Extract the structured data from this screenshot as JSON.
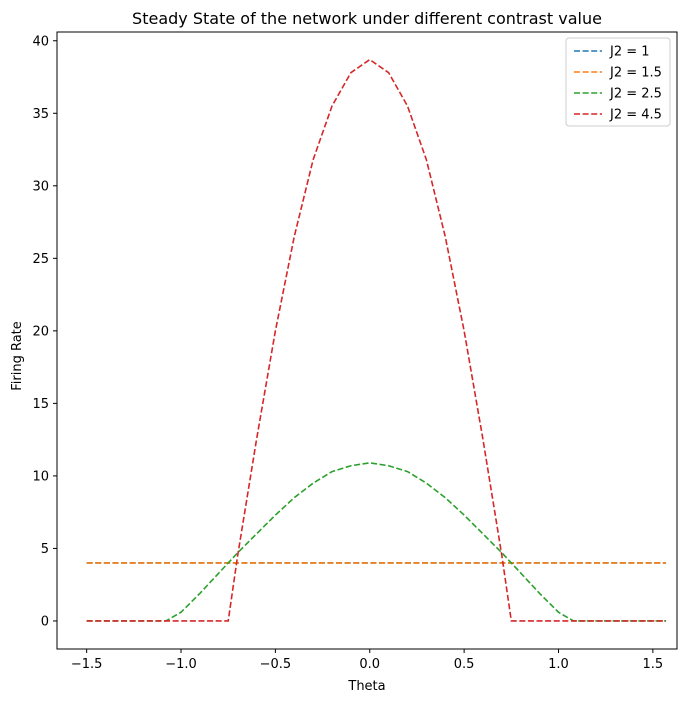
{
  "chart_data": {
    "type": "line",
    "title": "Steady State of the network under different contrast value",
    "xlabel": "Theta",
    "ylabel": "Firing Rate",
    "xlim": [
      -1.6571,
      1.6279
    ],
    "ylim": [
      -1.9335,
      40.6035
    ],
    "xticks": [
      -1.5,
      -1.0,
      -0.5,
      0.0,
      0.5,
      1.0,
      1.5
    ],
    "xtick_labels": [
      "−1.5",
      "−1.0",
      "−0.5",
      "0.0",
      "0.5",
      "1.0",
      "1.5"
    ],
    "yticks": [
      0,
      5,
      10,
      15,
      20,
      25,
      30,
      35,
      40
    ],
    "ytick_labels": [
      "0",
      "5",
      "10",
      "15",
      "20",
      "25",
      "30",
      "35",
      "40"
    ],
    "legend_position": "top-right",
    "line_style": "dashed",
    "series": [
      {
        "name": "J2 = 1",
        "color": "#1f77b4",
        "x": [
          -1.5,
          1.57
        ],
        "y": [
          4.0,
          4.0
        ]
      },
      {
        "name": "J2 = 1.5",
        "color": "#ff7f0e",
        "x": [
          -1.5,
          1.57
        ],
        "y": [
          4.0,
          4.0
        ]
      },
      {
        "name": "J2 = 2.5",
        "color": "#2ca02c",
        "x": [
          -1.5,
          -1.08,
          -1.0,
          -0.9,
          -0.8,
          -0.7,
          -0.6,
          -0.5,
          -0.4,
          -0.3,
          -0.2,
          -0.1,
          0.0,
          0.1,
          0.2,
          0.3,
          0.4,
          0.5,
          0.6,
          0.7,
          0.8,
          0.9,
          1.0,
          1.08,
          1.57
        ],
        "y": [
          0.0,
          0.0,
          0.6,
          1.9,
          3.3,
          4.7,
          6.0,
          7.3,
          8.5,
          9.5,
          10.3,
          10.7,
          10.9,
          10.7,
          10.3,
          9.5,
          8.5,
          7.3,
          6.0,
          4.7,
          3.3,
          1.9,
          0.6,
          0.0,
          0.0
        ]
      },
      {
        "name": "J2 = 4.5",
        "color": "#d62728",
        "x": [
          -1.5,
          -0.75,
          -0.7,
          -0.6,
          -0.5,
          -0.4,
          -0.3,
          -0.2,
          -0.1,
          0.0,
          0.1,
          0.2,
          0.3,
          0.4,
          0.5,
          0.6,
          0.7,
          0.75,
          1.57
        ],
        "y": [
          0.0,
          0.0,
          4.5,
          12.5,
          20.0,
          26.5,
          31.8,
          35.5,
          37.8,
          38.7,
          37.8,
          35.5,
          31.8,
          26.5,
          20.0,
          12.5,
          4.5,
          0.0,
          0.0
        ]
      }
    ]
  }
}
